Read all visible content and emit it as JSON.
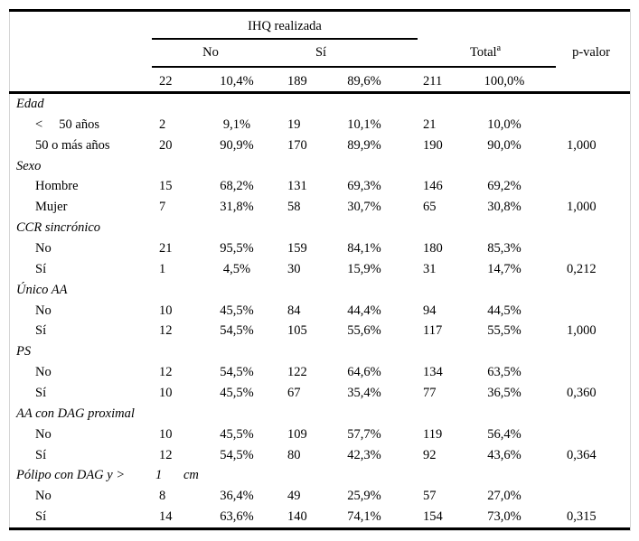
{
  "table": {
    "group_header": "IHQ realizada",
    "columns": {
      "no": "No",
      "si": "Sí",
      "total": "Total",
      "total_sup": "a",
      "p": "p-valor"
    },
    "totals": {
      "n_no": "22",
      "pct_no": "10,4%",
      "n_si": "189",
      "pct_si": "89,6%",
      "n_total": "211",
      "pct_total": "100,0%"
    },
    "rows": [
      {
        "type": "section",
        "label": "Edad"
      },
      {
        "type": "data",
        "label": "<     50 años",
        "n_no": "2",
        "pct_no": "9,1%",
        "n_si": "19",
        "pct_si": "10,1%",
        "n_total": "21",
        "pct_total": "10,0%",
        "p": ""
      },
      {
        "type": "data",
        "label": "50 o más años",
        "n_no": "20",
        "pct_no": "90,9%",
        "n_si": "170",
        "pct_si": "89,9%",
        "n_total": "190",
        "pct_total": "90,0%",
        "p": "1,000"
      },
      {
        "type": "section",
        "label": "Sexo"
      },
      {
        "type": "data",
        "label": "Hombre",
        "n_no": "15",
        "pct_no": "68,2%",
        "n_si": "131",
        "pct_si": "69,3%",
        "n_total": "146",
        "pct_total": "69,2%",
        "p": ""
      },
      {
        "type": "data",
        "label": "Mujer",
        "n_no": "7",
        "pct_no": "31,8%",
        "n_si": "58",
        "pct_si": "30,7%",
        "n_total": "65",
        "pct_total": "30,8%",
        "p": "1,000"
      },
      {
        "type": "section",
        "label": "CCR sincrónico"
      },
      {
        "type": "data",
        "label": "No",
        "n_no": "21",
        "pct_no": "95,5%",
        "n_si": "159",
        "pct_si": "84,1%",
        "n_total": "180",
        "pct_total": "85,3%",
        "p": ""
      },
      {
        "type": "data",
        "label": "Sí",
        "n_no": "1",
        "pct_no": "4,5%",
        "n_si": "30",
        "pct_si": "15,9%",
        "n_total": "31",
        "pct_total": "14,7%",
        "p": "0,212"
      },
      {
        "type": "section",
        "label": "Único AA"
      },
      {
        "type": "data",
        "label": "No",
        "n_no": "10",
        "pct_no": "45,5%",
        "n_si": "84",
        "pct_si": "44,4%",
        "n_total": "94",
        "pct_total": "44,5%",
        "p": ""
      },
      {
        "type": "data",
        "label": "Sí",
        "n_no": "12",
        "pct_no": "54,5%",
        "n_si": "105",
        "pct_si": "55,6%",
        "n_total": "117",
        "pct_total": "55,5%",
        "p": "1,000"
      },
      {
        "type": "section",
        "label": "PS"
      },
      {
        "type": "data",
        "label": "No",
        "n_no": "12",
        "pct_no": "54,5%",
        "n_si": "122",
        "pct_si": "64,6%",
        "n_total": "134",
        "pct_total": "63,5%",
        "p": ""
      },
      {
        "type": "data",
        "label": "Sí",
        "n_no": "10",
        "pct_no": "45,5%",
        "n_si": "67",
        "pct_si": "35,4%",
        "n_total": "77",
        "pct_total": "36,5%",
        "p": "0,360"
      },
      {
        "type": "section",
        "label": "AA con DAG proximal"
      },
      {
        "type": "data",
        "label": "No",
        "n_no": "10",
        "pct_no": "45,5%",
        "n_si": "109",
        "pct_si": "57,7%",
        "n_total": "119",
        "pct_total": "56,4%",
        "p": ""
      },
      {
        "type": "data",
        "label": "Sí",
        "n_no": "12",
        "pct_no": "54,5%",
        "n_si": "80",
        "pct_si": "42,3%",
        "n_total": "92",
        "pct_total": "43,6%",
        "p": "0,364"
      },
      {
        "type": "section",
        "label": "Pólipo con DAG y >",
        "extra1": "1",
        "extra2": "cm"
      },
      {
        "type": "data",
        "label": "No",
        "n_no": "8",
        "pct_no": "36,4%",
        "n_si": "49",
        "pct_si": "25,9%",
        "n_total": "57",
        "pct_total": "27,0%",
        "p": ""
      },
      {
        "type": "data",
        "label": "Sí",
        "n_no": "14",
        "pct_no": "63,6%",
        "n_si": "140",
        "pct_si": "74,1%",
        "n_total": "154",
        "pct_total": "73,0%",
        "p": "0,315"
      }
    ]
  },
  "chart_data": {
    "type": "table",
    "title": "IHQ realizada",
    "columns": [
      "n No",
      "% No",
      "n Sí",
      "% Sí",
      "n Total",
      "% Total",
      "p-valor"
    ],
    "overall": [
      22,
      "10,4%",
      189,
      "89,6%",
      211,
      "100,0%"
    ],
    "sections": [
      {
        "name": "Edad",
        "rows": [
          {
            "label": "< 50 años",
            "values": [
              2,
              "9,1%",
              19,
              "10,1%",
              21,
              "10,0%",
              null
            ]
          },
          {
            "label": "50 o más años",
            "values": [
              20,
              "90,9%",
              170,
              "89,9%",
              190,
              "90,0%",
              "1,000"
            ]
          }
        ]
      },
      {
        "name": "Sexo",
        "rows": [
          {
            "label": "Hombre",
            "values": [
              15,
              "68,2%",
              131,
              "69,3%",
              146,
              "69,2%",
              null
            ]
          },
          {
            "label": "Mujer",
            "values": [
              7,
              "31,8%",
              58,
              "30,7%",
              65,
              "30,8%",
              "1,000"
            ]
          }
        ]
      },
      {
        "name": "CCR sincrónico",
        "rows": [
          {
            "label": "No",
            "values": [
              21,
              "95,5%",
              159,
              "84,1%",
              180,
              "85,3%",
              null
            ]
          },
          {
            "label": "Sí",
            "values": [
              1,
              "4,5%",
              30,
              "15,9%",
              31,
              "14,7%",
              "0,212"
            ]
          }
        ]
      },
      {
        "name": "Único AA",
        "rows": [
          {
            "label": "No",
            "values": [
              10,
              "45,5%",
              84,
              "44,4%",
              94,
              "44,5%",
              null
            ]
          },
          {
            "label": "Sí",
            "values": [
              12,
              "54,5%",
              105,
              "55,6%",
              117,
              "55,5%",
              "1,000"
            ]
          }
        ]
      },
      {
        "name": "PS",
        "rows": [
          {
            "label": "No",
            "values": [
              12,
              "54,5%",
              122,
              "64,6%",
              134,
              "63,5%",
              null
            ]
          },
          {
            "label": "Sí",
            "values": [
              10,
              "45,5%",
              67,
              "35,4%",
              77,
              "36,5%",
              "0,360"
            ]
          }
        ]
      },
      {
        "name": "AA con DAG proximal",
        "rows": [
          {
            "label": "No",
            "values": [
              10,
              "45,5%",
              109,
              "57,7%",
              119,
              "56,4%",
              null
            ]
          },
          {
            "label": "Sí",
            "values": [
              12,
              "54,5%",
              80,
              "42,3%",
              92,
              "43,6%",
              "0,364"
            ]
          }
        ]
      },
      {
        "name": "Pólipo con DAG y > 1 cm",
        "rows": [
          {
            "label": "No",
            "values": [
              8,
              "36,4%",
              49,
              "25,9%",
              57,
              "27,0%",
              null
            ]
          },
          {
            "label": "Sí",
            "values": [
              14,
              "63,6%",
              140,
              "74,1%",
              154,
              "73,0%",
              "0,315"
            ]
          }
        ]
      }
    ]
  }
}
